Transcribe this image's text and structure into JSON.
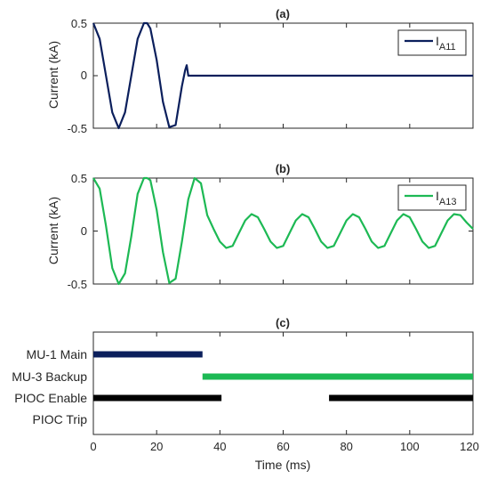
{
  "chart_data": [
    {
      "type": "line",
      "title": "(a)",
      "ylabel": "Current (kA)",
      "xlim": [
        0,
        120
      ],
      "ylim": [
        -0.5,
        0.5
      ],
      "yticks": [
        "0.5",
        "0",
        "-0.5"
      ],
      "grid": false,
      "legend_position": "top-right",
      "series": [
        {
          "name": "I",
          "name_subscript": "A11",
          "color": "#0b1f5c",
          "x": [
            0,
            2,
            4,
            6,
            8,
            10,
            12,
            14,
            16,
            17,
            18,
            20,
            22,
            24,
            26,
            28,
            29,
            29.5,
            30,
            31,
            40,
            60,
            80,
            100,
            120
          ],
          "y": [
            0.5,
            0.35,
            0.0,
            -0.35,
            -0.5,
            -0.35,
            0.0,
            0.35,
            0.5,
            0.5,
            0.45,
            0.15,
            -0.25,
            -0.49,
            -0.47,
            -0.1,
            0.05,
            0.1,
            0.0,
            0.0,
            0.0,
            0.0,
            0.0,
            0.0,
            0.0
          ]
        }
      ]
    },
    {
      "type": "line",
      "title": "(b)",
      "ylabel": "Current (kA)",
      "xlim": [
        0,
        120
      ],
      "ylim": [
        -0.5,
        0.5
      ],
      "yticks": [
        "0.5",
        "0",
        "-0.5"
      ],
      "grid": false,
      "legend_position": "top-right",
      "series": [
        {
          "name": "I",
          "name_subscript": "A13",
          "color": "#1db954",
          "x": [
            0,
            2,
            4,
            6,
            8,
            10,
            12,
            14,
            16,
            17,
            18,
            20,
            22,
            24,
            26,
            28,
            30,
            32,
            34,
            36,
            38,
            40,
            42,
            44,
            46,
            48,
            50,
            52,
            54,
            56,
            58,
            60,
            62,
            64,
            66,
            68,
            70,
            72,
            74,
            76,
            78,
            80,
            82,
            84,
            86,
            88,
            90,
            92,
            94,
            96,
            98,
            100,
            102,
            104,
            106,
            108,
            110,
            112,
            114,
            116,
            118,
            120
          ],
          "y": [
            0.5,
            0.4,
            0.05,
            -0.35,
            -0.5,
            -0.4,
            -0.05,
            0.35,
            0.5,
            0.5,
            0.48,
            0.2,
            -0.2,
            -0.49,
            -0.45,
            -0.1,
            0.3,
            0.5,
            0.45,
            0.15,
            0.02,
            -0.1,
            -0.16,
            -0.14,
            -0.02,
            0.1,
            0.16,
            0.13,
            0.02,
            -0.1,
            -0.16,
            -0.14,
            -0.02,
            0.1,
            0.16,
            0.13,
            0.02,
            -0.1,
            -0.16,
            -0.14,
            -0.02,
            0.1,
            0.16,
            0.13,
            0.02,
            -0.1,
            -0.16,
            -0.14,
            -0.02,
            0.1,
            0.16,
            0.13,
            0.02,
            -0.1,
            -0.16,
            -0.14,
            -0.02,
            0.1,
            0.16,
            0.15,
            0.08,
            0.02
          ]
        }
      ]
    },
    {
      "type": "timeline",
      "title": "(c)",
      "xlabel": "Time (ms)",
      "xlim": [
        0,
        120
      ],
      "xticks": [
        "0",
        "20",
        "40",
        "60",
        "80",
        "100",
        "120"
      ],
      "rows": [
        "MU-1 Main",
        "MU-3 Backup",
        "PIOC Enable",
        "PIOC Trip"
      ],
      "bars": [
        {
          "row": "MU-1 Main",
          "start": 0,
          "end": 34.5,
          "color": "#0b1f5c"
        },
        {
          "row": "MU-3 Backup",
          "start": 34.5,
          "end": 120,
          "color": "#1db954"
        },
        {
          "row": "PIOC Enable",
          "start": 0,
          "end": 40.5,
          "color": "#000000"
        },
        {
          "row": "PIOC Enable",
          "start": 74.5,
          "end": 120,
          "color": "#000000"
        }
      ]
    }
  ]
}
